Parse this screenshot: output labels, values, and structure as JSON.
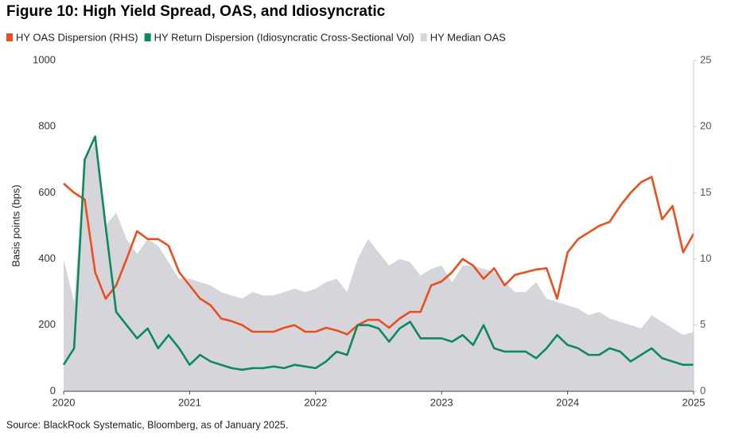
{
  "chart_data": {
    "type": "line",
    "title": "Figure 10: High Yield Spread, OAS, and Idiosyncratic",
    "y_label": "Basis points (bps)",
    "source": "Source: BlackRock Systematic, Bloomberg, as of January 2025.",
    "x": [
      2020,
      2020.083,
      2020.167,
      2020.25,
      2020.333,
      2020.417,
      2020.5,
      2020.583,
      2020.667,
      2020.75,
      2020.833,
      2020.917,
      2021,
      2021.083,
      2021.167,
      2021.25,
      2021.333,
      2021.417,
      2021.5,
      2021.583,
      2021.667,
      2021.75,
      2021.833,
      2021.917,
      2022,
      2022.083,
      2022.167,
      2022.25,
      2022.333,
      2022.417,
      2022.5,
      2022.583,
      2022.667,
      2022.75,
      2022.833,
      2022.917,
      2023,
      2023.083,
      2023.167,
      2023.25,
      2023.333,
      2023.417,
      2023.5,
      2023.583,
      2023.667,
      2023.75,
      2023.833,
      2023.917,
      2024,
      2024.083,
      2024.167,
      2024.25,
      2024.333,
      2024.417,
      2024.5,
      2024.583,
      2024.667,
      2024.75,
      2024.833,
      2024.917,
      2025
    ],
    "series": [
      {
        "name": "HY OAS Dispersion (RHS)",
        "color": "#e8501e",
        "axis": "y2",
        "values": [
          15.7,
          15.0,
          14.5,
          9.0,
          7.0,
          8.0,
          10.0,
          12.1,
          11.5,
          11.5,
          11.0,
          9.0,
          8.0,
          7.0,
          6.5,
          5.5,
          5.3,
          5.0,
          4.5,
          4.5,
          4.5,
          4.8,
          5.0,
          4.5,
          4.5,
          4.8,
          4.6,
          4.3,
          5.0,
          5.4,
          5.4,
          4.8,
          5.5,
          6.0,
          6.0,
          8.0,
          8.3,
          9.0,
          10.0,
          9.5,
          8.5,
          9.3,
          8.0,
          8.8,
          9.0,
          9.2,
          9.3,
          7.0,
          10.5,
          11.5,
          12.0,
          12.5,
          12.8,
          14.0,
          15.0,
          15.8,
          16.2,
          13.0,
          14.0,
          10.5,
          11.9
        ]
      },
      {
        "name": "HY Return Dispersion (Idiosyncratic Cross-Sectional Vol)",
        "color": "#0d8a5a",
        "values": [
          80,
          130,
          700,
          770,
          500,
          240,
          200,
          160,
          190,
          130,
          170,
          130,
          80,
          110,
          90,
          80,
          70,
          65,
          70,
          70,
          75,
          70,
          80,
          75,
          70,
          90,
          120,
          110,
          200,
          200,
          190,
          150,
          190,
          210,
          160,
          160,
          160,
          150,
          170,
          140,
          200,
          130,
          120,
          120,
          120,
          100,
          130,
          170,
          140,
          130,
          110,
          110,
          130,
          120,
          90,
          110,
          130,
          100,
          90,
          80,
          80
        ]
      },
      {
        "name": "HY Median OAS",
        "color": "#d6d5dc",
        "style": "area",
        "values": [
          400,
          270,
          700,
          750,
          500,
          540,
          460,
          415,
          460,
          440,
          390,
          340,
          340,
          330,
          320,
          300,
          290,
          280,
          300,
          290,
          290,
          300,
          310,
          300,
          310,
          330,
          340,
          300,
          400,
          460,
          420,
          380,
          400,
          390,
          350,
          370,
          380,
          330,
          380,
          380,
          370,
          360,
          330,
          300,
          300,
          330,
          280,
          270,
          260,
          250,
          230,
          240,
          220,
          210,
          200,
          190,
          230,
          210,
          190,
          170,
          180
        ]
      }
    ],
    "xlim": [
      2020,
      2025
    ],
    "xticks": [
      2020,
      2021,
      2022,
      2023,
      2024,
      2025
    ],
    "ylim": [
      0,
      1000
    ],
    "yticks": [
      0,
      200,
      400,
      600,
      800,
      1000
    ],
    "y2lim": [
      0,
      25
    ],
    "y2ticks": [
      0,
      5,
      10,
      15,
      20,
      25
    ],
    "grid": false,
    "legend": "top"
  }
}
